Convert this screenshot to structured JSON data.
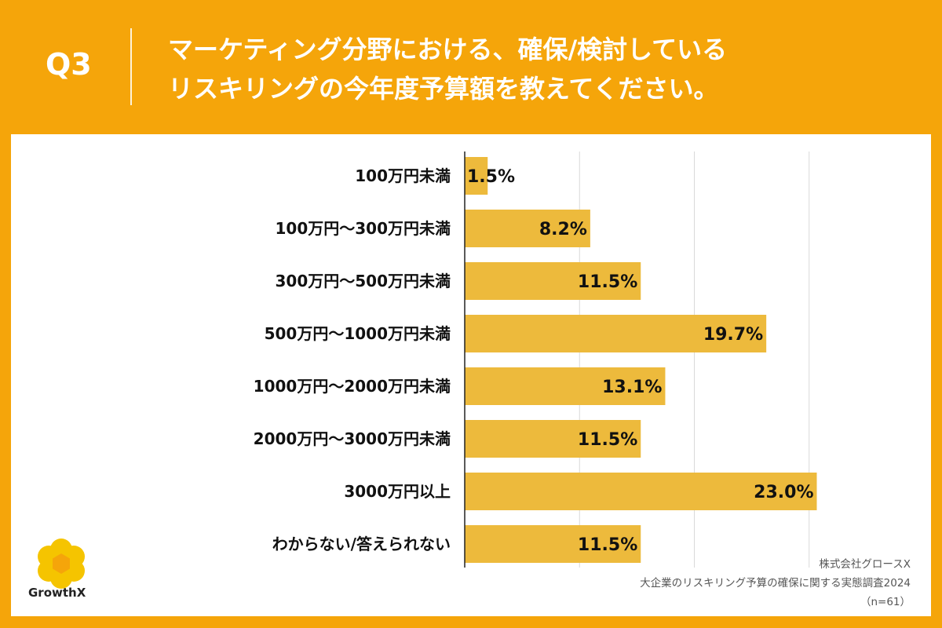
{
  "header": {
    "question": "Q3",
    "title_lines": [
      "マーケティング分野における、確保/検討している",
      "リスキリングの今年度予算額を教えてください。"
    ]
  },
  "colors": {
    "background": "#F5A50A",
    "bar": "#EDBA3C",
    "panel": "#FFFFFF",
    "text": "#111111"
  },
  "chart_data": {
    "type": "bar",
    "orientation": "horizontal",
    "categories": [
      "100万円未満",
      "100万円〜300万円未満",
      "300万円〜500万円未満",
      "500万円〜1000万円未満",
      "1000万円〜2000万円未満",
      "2000万円〜3000万円未満",
      "3000万円以上",
      "わからない/答えられない"
    ],
    "values": [
      1.5,
      8.2,
      11.5,
      19.7,
      13.1,
      11.5,
      23.0,
      11.5
    ],
    "labels": [
      "1.5%",
      "8.2%",
      "11.5%",
      "19.7%",
      "13.1%",
      "11.5%",
      "23.0%",
      "11.5%"
    ],
    "xlim": [
      0,
      25
    ],
    "gridlines": [
      0,
      7.5,
      15,
      22.5
    ],
    "grid": true,
    "title": "",
    "xlabel": "",
    "ylabel": ""
  },
  "footer": {
    "company": "株式会社グロースX",
    "survey": "大企業のリスキリング予算の確保に関する実態調査2024",
    "sample": "（n=61）"
  },
  "logo": {
    "icon": "growthx-flower-icon",
    "text": "GrowthX"
  }
}
